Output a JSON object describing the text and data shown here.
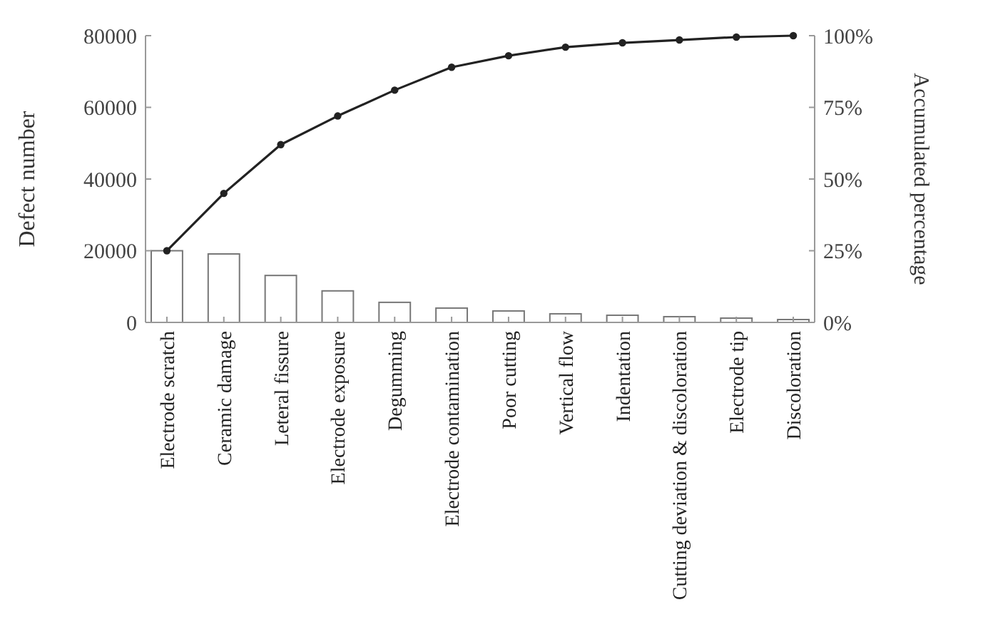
{
  "chart_data": {
    "type": "bar",
    "ylabel": "Defect number",
    "y2label": "Accumulated percentage",
    "categories": [
      "Electrode scratch",
      "Ceramic damage",
      "Leteral fissure",
      "Electrode exposure",
      "Degumming",
      "Electrode contamination",
      "Poor cutting",
      "Vertical flow",
      "Indentation",
      "Cutting deviation & discoloration",
      "Electrode tip",
      "Discoloration"
    ],
    "series": [
      {
        "color": "#ffffff",
        "values": [
          20000,
          19100,
          13100,
          8800,
          5600,
          4000,
          3200,
          2400,
          2000,
          1600,
          1200,
          800
        ]
      },
      {
        "type": "line",
        "axis": "y2",
        "color": "#222222",
        "values": [
          25,
          45,
          62,
          72,
          81,
          89,
          93,
          96,
          97.5,
          98.5,
          99.5,
          100
        ]
      }
    ],
    "ylim": [
      0,
      80000
    ],
    "yticks": [
      0,
      20000,
      40000,
      60000,
      80000
    ],
    "y2lim": [
      0,
      100
    ],
    "y2ticks": [
      {
        "value": 0,
        "label": "0%"
      },
      {
        "value": 25,
        "label": "25%"
      },
      {
        "value": 50,
        "label": "50%"
      },
      {
        "value": 75,
        "label": "75%"
      },
      {
        "value": 100,
        "label": "100%"
      }
    ],
    "marker": "circle",
    "grid": false
  }
}
